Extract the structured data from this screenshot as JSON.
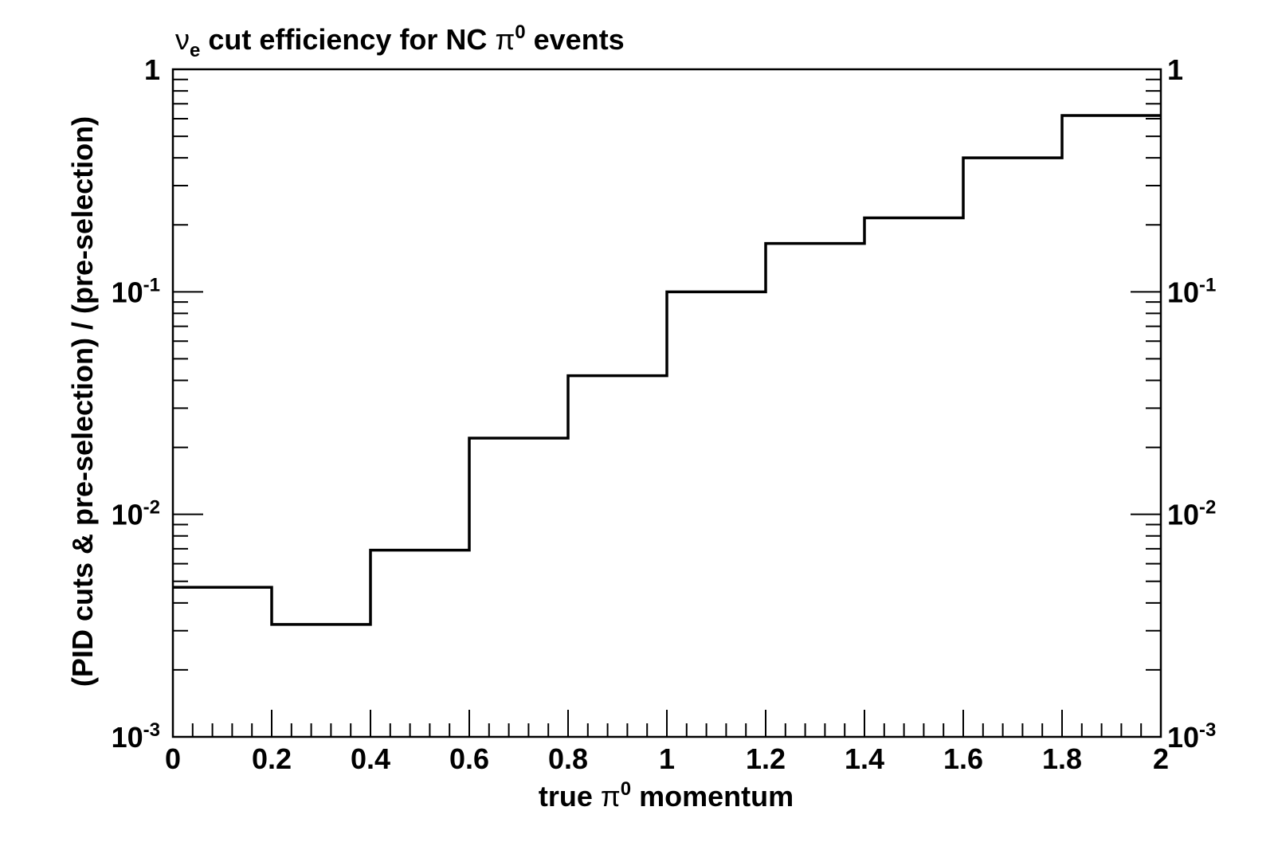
{
  "chart_data": {
    "type": "line",
    "subtype": "step histogram",
    "title": {
      "nu": "ν",
      "sub": "e",
      "mid": " cut efficiency for NC ",
      "pi": "π",
      "sup": "0",
      "tail": " events"
    },
    "xlabel": {
      "pre": "true ",
      "pi": "π",
      "sup": "0",
      "post": " momentum"
    },
    "ylabel": "(PID cuts & pre-selection) / (pre-selection)",
    "x_range": [
      0,
      2
    ],
    "y_range": [
      0.001,
      1
    ],
    "y_scale": "log",
    "x_ticks": [
      "0",
      "0.2",
      "0.4",
      "0.6",
      "0.8",
      "1",
      "1.2",
      "1.4",
      "1.6",
      "1.8",
      "2"
    ],
    "y_ticks": [
      {
        "base": "1",
        "exp": "",
        "value": 1
      },
      {
        "base": "10",
        "exp": "-1",
        "value": 0.1
      },
      {
        "base": "10",
        "exp": "-2",
        "value": 0.01
      },
      {
        "base": "10",
        "exp": "-3",
        "value": 0.001
      }
    ],
    "bin_edges": [
      0,
      0.2,
      0.4,
      0.6,
      0.8,
      1.0,
      1.2,
      1.4,
      1.6,
      1.8,
      2.0
    ],
    "values": [
      0.0047,
      0.0032,
      0.0069,
      0.022,
      0.042,
      0.1,
      0.165,
      0.215,
      0.4,
      0.62
    ],
    "grid": false,
    "legend": "none",
    "line_color": "#000000"
  }
}
